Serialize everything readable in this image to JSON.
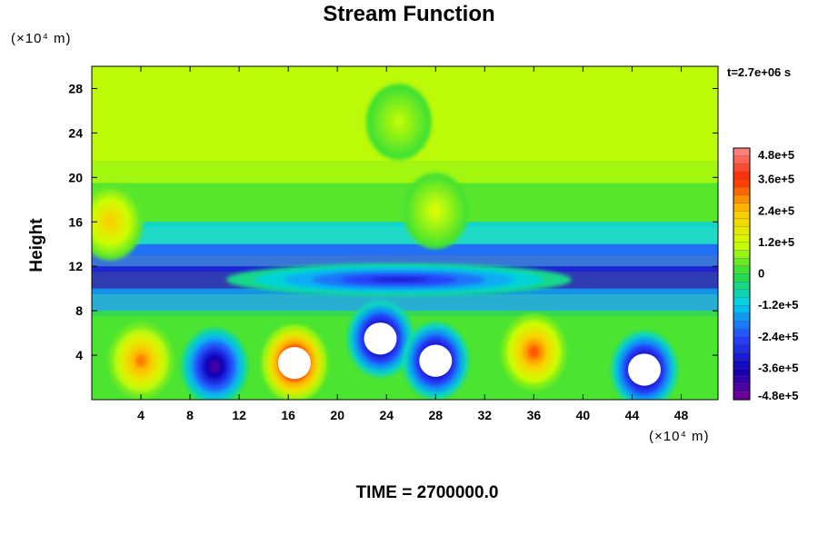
{
  "title": "Stream Function",
  "y_unit": "(×10⁴ m)",
  "x_unit": "(×10⁴ m)",
  "y_label": "Height",
  "time_annotation": "t=2.7e+06 s",
  "caption": "TIME = 2700000.0",
  "chart_data": {
    "type": "heatmap",
    "title": "Stream Function",
    "xlabel": "",
    "ylabel": "Height",
    "xlim": [
      0,
      51
    ],
    "ylim": [
      0,
      30
    ],
    "x_ticks": [
      4,
      8,
      12,
      16,
      20,
      24,
      28,
      32,
      36,
      40,
      44,
      48
    ],
    "y_ticks": [
      4,
      8,
      12,
      16,
      20,
      24,
      28
    ],
    "colorbar": {
      "ticks": [
        "4.8e+5",
        "3.6e+5",
        "2.4e+5",
        "1.2e+5",
        "0",
        "-1.2e+5",
        "-2.4e+5",
        "-3.6e+5",
        "-4.8e+5"
      ],
      "tick_values": [
        480000,
        360000,
        240000,
        120000,
        0,
        -120000,
        -240000,
        -360000,
        -480000
      ],
      "range": [
        -480000,
        480000
      ]
    },
    "features": [
      {
        "x": 4,
        "y": 3.5,
        "value": 300000
      },
      {
        "x": 10,
        "y": 3,
        "value": -430000
      },
      {
        "x": 16.5,
        "y": 3.3,
        "value": 500000
      },
      {
        "x": 23.5,
        "y": 5.5,
        "value": -500000
      },
      {
        "x": 28,
        "y": 3.5,
        "value": -500000
      },
      {
        "x": 36,
        "y": 4.3,
        "value": 330000
      },
      {
        "x": 45,
        "y": 2.7,
        "value": -500000
      },
      {
        "x": 25,
        "y": 10.8,
        "value": -300000
      },
      {
        "x": 28,
        "y": 17,
        "value": 120000
      },
      {
        "x": 1.5,
        "y": 16,
        "value": 220000
      },
      {
        "x": 25,
        "y": 25,
        "value": 100000
      }
    ]
  }
}
